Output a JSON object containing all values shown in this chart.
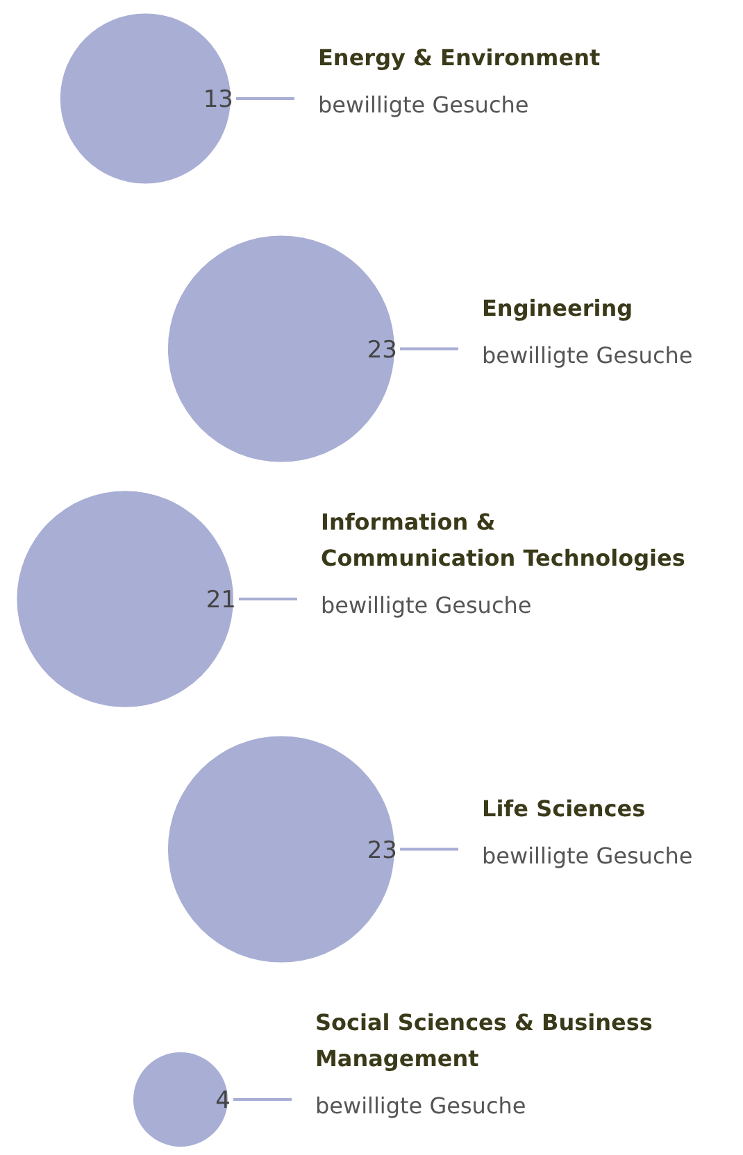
{
  "chart_data": {
    "type": "other",
    "categories": [
      "Energy & Environment",
      "Engineering",
      "Information & Communication Technologies",
      "Life Sciences",
      "Social Sciences & Business Management"
    ],
    "values": [
      13,
      23,
      21,
      23,
      4
    ],
    "color": "#a8aed4",
    "data_labels": true,
    "annotations": [
      "bewilligte Gesuche",
      "bewilligte Gesuche",
      "bewilligte Gesuche",
      "bewilligte Gesuche",
      "bewilligte Gesuche"
    ]
  }
}
